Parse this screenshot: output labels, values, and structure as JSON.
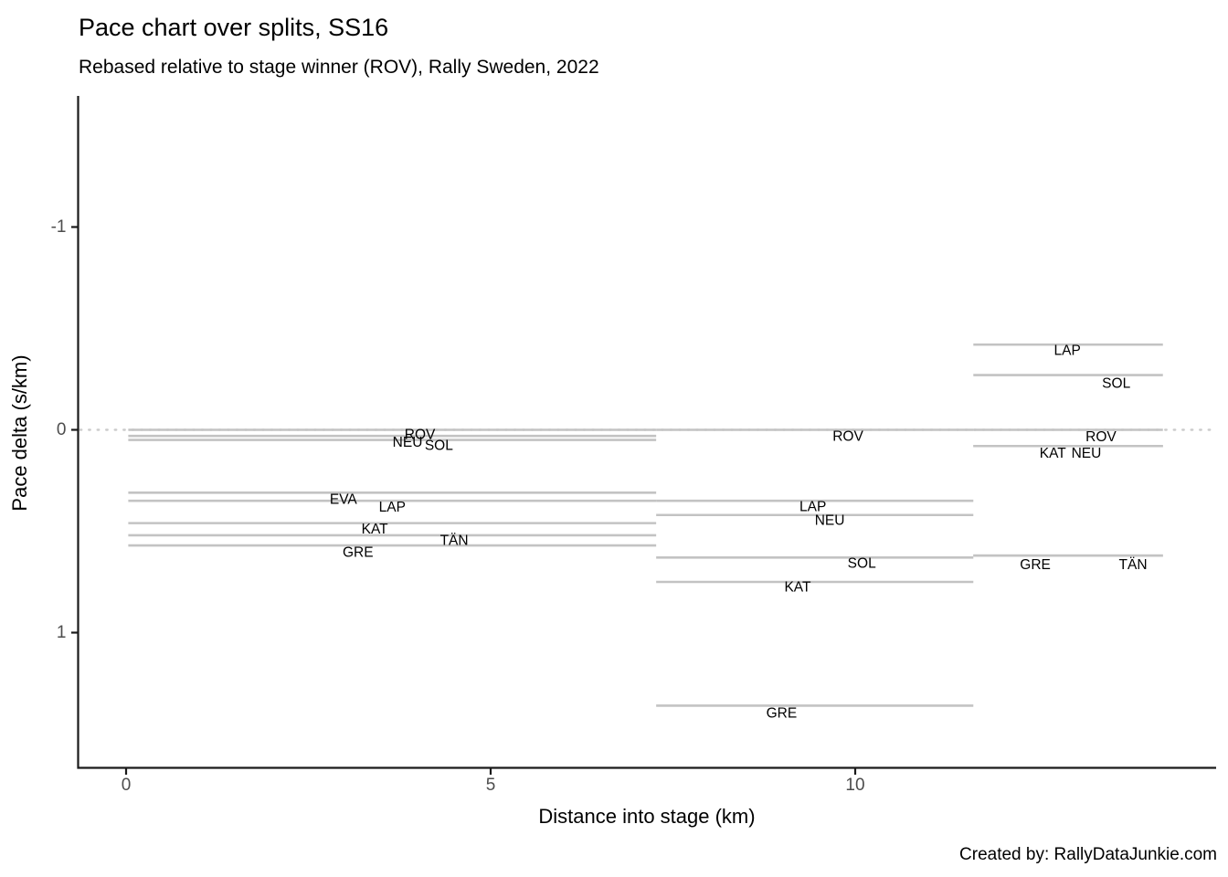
{
  "caption": "Created by: RallyDataJunkie.com",
  "chart_data": {
    "type": "line",
    "title": "Pace chart over splits, SS16",
    "subtitle": "Rebased relative to stage winner (ROV), Rally Sweden, 2022",
    "xlabel": "Distance into stage (km)",
    "ylabel": "Pace delta (s/km)",
    "x_ticks": [
      0,
      5,
      10
    ],
    "y_ticks": [
      -1,
      0,
      1
    ],
    "y_axis_inverted": true,
    "xlim": [
      -0.63,
      14.92
    ],
    "ylim": [
      -1.64,
      1.66
    ],
    "grid": false,
    "legend": false,
    "reference_line_y": 0,
    "line_color": "#c3c3c3",
    "reference_line_color": "#cccccc",
    "axis_color": "#1a1a1a",
    "tick_label_color": "#4d4d4d",
    "splits_km": [
      [
        0.03,
        7.27
      ],
      [
        7.27,
        11.62
      ],
      [
        11.62,
        14.22
      ]
    ],
    "series": [
      {
        "name": "ROV",
        "splits": [
          0.0,
          0.0,
          0.0
        ]
      },
      {
        "name": "NEU",
        "splits": [
          0.03,
          0.42,
          0.08
        ]
      },
      {
        "name": "SOL",
        "splits": [
          0.05,
          0.63,
          -0.27
        ]
      },
      {
        "name": "EVA",
        "splits": [
          0.31,
          null,
          null
        ]
      },
      {
        "name": "LAP",
        "splits": [
          0.35,
          0.35,
          -0.42
        ]
      },
      {
        "name": "KAT",
        "splits": [
          0.46,
          0.75,
          0.08
        ]
      },
      {
        "name": "TÄN",
        "splits": [
          0.52,
          null,
          0.62
        ]
      },
      {
        "name": "GRE",
        "splits": [
          0.57,
          1.36,
          0.62
        ]
      }
    ],
    "labels": [
      {
        "text": "ROV",
        "km": 4.03,
        "v": 0.025
      },
      {
        "text": "NEU",
        "km": 3.86,
        "v": 0.064
      },
      {
        "text": "SOL",
        "km": 4.29,
        "v": 0.079
      },
      {
        "text": "EVA",
        "km": 2.98,
        "v": 0.345
      },
      {
        "text": "LAP",
        "km": 3.65,
        "v": 0.382
      },
      {
        "text": "KAT",
        "km": 3.41,
        "v": 0.492
      },
      {
        "text": "TÄN",
        "km": 4.5,
        "v": 0.547
      },
      {
        "text": "GRE",
        "km": 3.18,
        "v": 0.605
      },
      {
        "text": "ROV",
        "km": 9.9,
        "v": 0.034
      },
      {
        "text": "LAP",
        "km": 9.42,
        "v": 0.38
      },
      {
        "text": "NEU",
        "km": 9.65,
        "v": 0.448
      },
      {
        "text": "SOL",
        "km": 10.09,
        "v": 0.661
      },
      {
        "text": "KAT",
        "km": 9.21,
        "v": 0.778
      },
      {
        "text": "GRE",
        "km": 8.99,
        "v": 1.398
      },
      {
        "text": "LAP",
        "km": 12.91,
        "v": -0.39
      },
      {
        "text": "SOL",
        "km": 13.58,
        "v": -0.228
      },
      {
        "text": "ROV",
        "km": 13.37,
        "v": 0.035
      },
      {
        "text": "KAT",
        "km": 12.71,
        "v": 0.118
      },
      {
        "text": "NEU",
        "km": 13.17,
        "v": 0.118
      },
      {
        "text": "GRE",
        "km": 12.47,
        "v": 0.666
      },
      {
        "text": "TÄN",
        "km": 13.81,
        "v": 0.666
      }
    ]
  }
}
